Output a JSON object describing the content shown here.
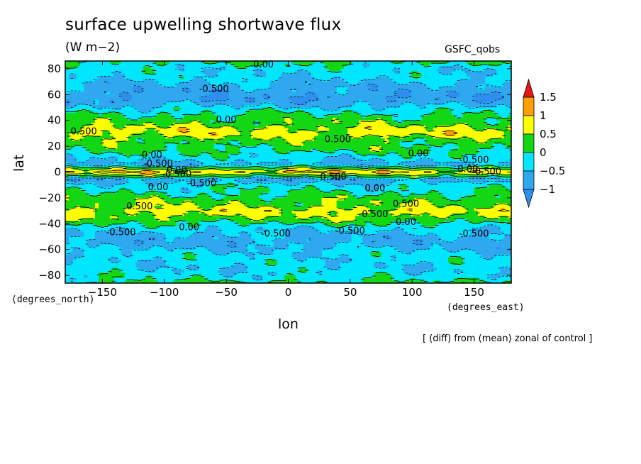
{
  "header": {
    "title": "surface upwelling shortwave flux",
    "units": "(W m−2)",
    "source": "GSFC_qobs"
  },
  "footnote": "[ (diff) from (mean) zonal of control ]",
  "colors": {
    "lt_neg1": "#2f8ff0",
    "neg1_to_neg05": "#2fa8f0",
    "neg05_to_0": "#00e6ff",
    "0_to_05": "#13d713",
    "05_to_1": "#ffff00",
    "1_to_15": "#ffa000",
    "gt_15": "#e61414"
  },
  "chart_data": {
    "type": "heatmap",
    "title": "surface upwelling shortwave flux",
    "subtitle": "(W m−2)",
    "xlabel": "lon",
    "ylabel": "lat",
    "x_unit": "(degrees_east)",
    "y_unit": "(degrees_north)",
    "xlim": [
      -180,
      180
    ],
    "ylim": [
      -86,
      86
    ],
    "x_ticks": [
      -150,
      -100,
      -50,
      0,
      50,
      100,
      150
    ],
    "x_tick_labels": [
      "−150",
      "−100",
      "−50",
      "0",
      "50",
      "100",
      "150"
    ],
    "y_ticks": [
      80,
      60,
      40,
      20,
      0,
      -20,
      -40,
      -60,
      -80
    ],
    "y_tick_labels": [
      "80",
      "60",
      "40",
      "20",
      "0",
      "−20",
      "−40",
      "−60",
      "−80"
    ],
    "legend": {
      "placement": "right",
      "levels": [
        "1.5",
        "1",
        "0.5",
        "0",
        "−0.5",
        "−1"
      ],
      "level_values": [
        1.5,
        1,
        0.5,
        0,
        -0.5,
        -1
      ]
    },
    "contour_labels": [
      "0.00",
      "0.500",
      "-0.500"
    ],
    "zonal_profile": {
      "lat": [
        86,
        80,
        74,
        68,
        62,
        56,
        50,
        44,
        38,
        34,
        30,
        26,
        22,
        18,
        14,
        10,
        6,
        3,
        0,
        -3,
        -6,
        -10,
        -14,
        -18,
        -22,
        -26,
        -30,
        -34,
        -38,
        -42,
        -46,
        -50,
        -54,
        -58,
        -62,
        -66,
        -70,
        -74,
        -78,
        -82,
        -86
      ],
      "value": [
        0.05,
        -0.3,
        -0.35,
        -0.6,
        -0.8,
        -0.9,
        -0.4,
        0.1,
        0.3,
        0.6,
        0.7,
        0.4,
        0.2,
        0.15,
        -0.1,
        -0.35,
        -0.7,
        0.3,
        1.0,
        0.2,
        -0.8,
        -0.3,
        -0.1,
        0.1,
        0.3,
        0.45,
        0.7,
        0.5,
        0.2,
        -0.2,
        -0.5,
        -0.6,
        -0.7,
        -0.6,
        -0.4,
        -0.3,
        -0.3,
        -0.4,
        -0.3,
        -0.2,
        0.1
      ]
    }
  }
}
